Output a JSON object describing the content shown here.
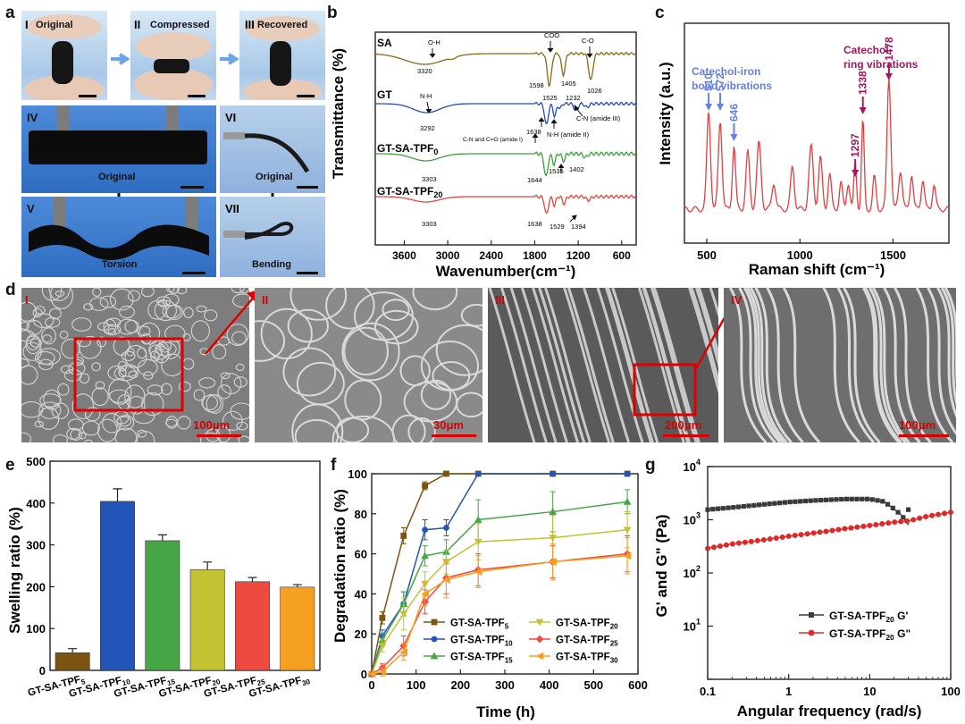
{
  "panels": {
    "a": "a",
    "b": "b",
    "c": "c",
    "d": "d",
    "e": "e",
    "f": "f",
    "g": "g"
  },
  "panel_a": {
    "I": "I",
    "II": "II",
    "III": "III",
    "IV": "IV",
    "V": "V",
    "VI": "VI",
    "VII": "VII",
    "original": "Original",
    "compressed": "Compressed",
    "recovered": "Recovered",
    "original_iv": "Original",
    "torsion": "Torsion",
    "original_vi": "Original",
    "bending": "Bending"
  },
  "panel_d": {
    "I": "I",
    "II": "II",
    "III": "III",
    "IV": "IV",
    "scales": [
      "100μm",
      "30μm",
      "200μm",
      "100μm"
    ]
  },
  "colors": {
    "brown": "#8B6914",
    "blue": "#1f4fb8",
    "green": "#3aa23a",
    "red": "#e0463c",
    "raman": "#e04040",
    "catechol_iron": "#6680e0",
    "ring": "#a0195e",
    "TPF5": "#7a5410",
    "TPF10": "#2255b8",
    "TPF15": "#46a646",
    "TPF20": "#c2c232",
    "TPF25": "#ee4a40",
    "TPF30": "#f5a020",
    "G_prime": "#3a3a3a",
    "G_double": "#e02828"
  },
  "chart_data": [
    {
      "id": "b",
      "type": "line",
      "title": "",
      "xlabel": "Wavenumber(cm⁻¹)",
      "ylabel": "Transmittance (%)",
      "xlim": [
        4000,
        400
      ],
      "xticks": [
        3600,
        3000,
        2400,
        1800,
        1200,
        600
      ],
      "series": [
        {
          "name": "SA",
          "label": "SA",
          "annotations": [
            {
              "text": "O-H",
              "x": 3330
            },
            {
              "text": "3320",
              "x": 3320
            },
            {
              "text": "COO",
              "x": 1598
            },
            {
              "text": "1598",
              "x": 1598
            },
            {
              "text": "1405",
              "x": 1405
            },
            {
              "text": "C-O",
              "x": 1026
            },
            {
              "text": "1026",
              "x": 1026
            }
          ]
        },
        {
          "name": "GT",
          "label": "GT",
          "annotations": [
            {
              "text": "N-H",
              "x": 3292
            },
            {
              "text": "3292",
              "x": 3292
            },
            {
              "text": "1525",
              "x": 1525
            },
            {
              "text": "1232",
              "x": 1232
            },
            {
              "text": "1638",
              "x": 1638
            },
            {
              "text": "C-N (amide III)",
              "x": 1232
            },
            {
              "text": "N-H (amide II)",
              "x": 1525
            },
            {
              "text": "C-N and C=O (amide I)",
              "x": 1638
            }
          ]
        },
        {
          "name": "GT-SA-TPF0",
          "label_main": "GT-SA-TPF",
          "label_sub": "0",
          "annotations": [
            {
              "text": "3303",
              "x": 3303
            },
            {
              "text": "1644",
              "x": 1644
            },
            {
              "text": "1535",
              "x": 1535
            },
            {
              "text": "1402",
              "x": 1402
            }
          ]
        },
        {
          "name": "GT-SA-TPF20",
          "label_main": "GT-SA-TPF",
          "label_sub": "20",
          "annotations": [
            {
              "text": "3303",
              "x": 3303
            },
            {
              "text": "1638",
              "x": 1638
            },
            {
              "text": "1529",
              "x": 1529
            },
            {
              "text": "1394",
              "x": 1394
            }
          ]
        }
      ]
    },
    {
      "id": "c",
      "type": "line",
      "title": "",
      "xlabel": "Raman shift (cm⁻¹)",
      "ylabel": "Intensity (a.u.)",
      "xlim": [
        380,
        1800
      ],
      "xticks": [
        500,
        1000,
        1500
      ],
      "peaks": [
        {
          "x": 510,
          "label": "510",
          "group": "catechol-iron"
        },
        {
          "x": 572,
          "label": "572",
          "group": "catechol-iron"
        },
        {
          "x": 646,
          "label": "646",
          "group": "catechol-iron"
        },
        {
          "x": 1297,
          "label": "1297",
          "group": "ring"
        },
        {
          "x": 1338,
          "label": "1338",
          "group": "ring"
        },
        {
          "x": 1478,
          "label": "1478",
          "group": "ring"
        }
      ],
      "annotation_iron": [
        "Catechol-iron",
        "bond vibrations"
      ],
      "annotation_ring": [
        "Catechol",
        "ring vibrations"
      ]
    },
    {
      "id": "e",
      "type": "bar",
      "title": "",
      "xlabel": "",
      "ylabel": "Swelling ratio (%)",
      "ylim": [
        0,
        500
      ],
      "yticks": [
        0,
        100,
        200,
        300,
        400,
        500
      ],
      "categories": [
        "GT-SA-TPF5",
        "GT-SA-TPF10",
        "GT-SA-TPF15",
        "GT-SA-TPF20",
        "GT-SA-TPF25",
        "GT-SA-TPF30"
      ],
      "cat_main": "GT-SA-TPF",
      "cat_sub": [
        "5",
        "10",
        "15",
        "20",
        "25",
        "30"
      ],
      "values": [
        42,
        404,
        310,
        241,
        212,
        199
      ],
      "errors": [
        10,
        30,
        14,
        18,
        10,
        6
      ]
    },
    {
      "id": "f",
      "type": "line",
      "title": "",
      "xlabel": "Time (h)",
      "ylabel": "Degradation ratio (%)",
      "xlim": [
        0,
        600
      ],
      "ylim": [
        0,
        100
      ],
      "xticks": [
        0,
        100,
        200,
        300,
        400,
        500,
        600
      ],
      "yticks": [
        0,
        20,
        40,
        60,
        80,
        100
      ],
      "x": [
        0,
        24,
        72,
        120,
        168,
        240,
        408,
        576
      ],
      "series": [
        {
          "name": "GT-SA-TPF5",
          "main": "GT-SA-TPF",
          "sub": "5",
          "marker": "square",
          "values": [
            0,
            28,
            69,
            94,
            100,
            100,
            100,
            100
          ],
          "err": [
            0,
            3,
            4,
            2,
            0,
            0,
            0,
            0
          ]
        },
        {
          "name": "GT-SA-TPF10",
          "main": "GT-SA-TPF",
          "sub": "10",
          "marker": "circle",
          "values": [
            0,
            19,
            35,
            72,
            73,
            100,
            100,
            100
          ],
          "err": [
            0,
            3,
            6,
            5,
            4,
            0,
            0,
            0
          ]
        },
        {
          "name": "GT-SA-TPF15",
          "main": "GT-SA-TPF",
          "sub": "15",
          "marker": "triangle",
          "values": [
            0,
            17,
            35,
            59,
            61,
            77,
            81,
            86
          ],
          "err": [
            0,
            3,
            6,
            5,
            6,
            10,
            10,
            6
          ]
        },
        {
          "name": "GT-SA-TPF20",
          "main": "GT-SA-TPF",
          "sub": "20",
          "marker": "down-triangle",
          "values": [
            0,
            14,
            30,
            45,
            56,
            66,
            68,
            72
          ],
          "err": [
            0,
            3,
            8,
            6,
            6,
            9,
            11,
            9
          ]
        },
        {
          "name": "GT-SA-TPF25",
          "main": "GT-SA-TPF",
          "sub": "25",
          "marker": "diamond",
          "values": [
            0,
            3,
            14,
            36,
            48,
            52,
            56,
            60
          ],
          "err": [
            0,
            2,
            5,
            6,
            8,
            8,
            8,
            9
          ]
        },
        {
          "name": "GT-SA-TPF30",
          "main": "GT-SA-TPF",
          "sub": "30",
          "marker": "left-triangle",
          "values": [
            0,
            1,
            11,
            40,
            47,
            51,
            56,
            59
          ],
          "err": [
            0,
            2,
            4,
            6,
            9,
            8,
            9,
            9
          ]
        }
      ]
    },
    {
      "id": "g",
      "type": "line",
      "title": "",
      "xlabel": "Angular frequency (rad/s)",
      "ylabel": "G' and G\" (Pa)",
      "xscale": "log",
      "yscale": "log",
      "xlim": [
        0.1,
        100
      ],
      "ylim": [
        1,
        10000
      ],
      "xticks": [
        "0.1",
        "1",
        "10",
        "100"
      ],
      "yticks_base": "10",
      "yticks_exp": [
        "0",
        "1",
        "2",
        "3",
        "4"
      ],
      "series": [
        {
          "name": "GT-SA-TPF20 G'",
          "main": "GT-SA-TPF",
          "sub": "20",
          "suffix": " G'",
          "marker": "square",
          "points": [
            [
              0.1,
              1550
            ],
            [
              0.2,
              1700
            ],
            [
              0.5,
              1950
            ],
            [
              1,
              2150
            ],
            [
              2,
              2300
            ],
            [
              5,
              2450
            ],
            [
              10,
              2450
            ],
            [
              15,
              2200
            ],
            [
              20,
              1600
            ],
            [
              25,
              1200
            ],
            [
              30,
              800
            ]
          ]
        },
        {
          "name": "GT-SA-TPF20 G\"",
          "main": "GT-SA-TPF",
          "sub": "20",
          "suffix": " G\"",
          "marker": "circle",
          "points": [
            [
              0.1,
              290
            ],
            [
              0.2,
              350
            ],
            [
              0.5,
              420
            ],
            [
              1,
              490
            ],
            [
              2,
              560
            ],
            [
              5,
              680
            ],
            [
              10,
              780
            ],
            [
              20,
              900
            ],
            [
              30,
              950
            ],
            [
              50,
              1150
            ],
            [
              100,
              1380
            ]
          ]
        }
      ]
    }
  ]
}
